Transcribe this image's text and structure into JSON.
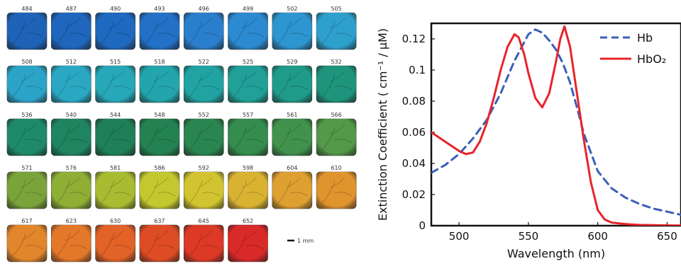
{
  "tile_panel": {
    "rows": [
      [
        {
          "label": "484",
          "color": "#1f63b8"
        },
        {
          "label": "487",
          "color": "#1f66bc"
        },
        {
          "label": "490",
          "color": "#1f69c0"
        },
        {
          "label": "493",
          "color": "#2271c6"
        },
        {
          "label": "496",
          "color": "#2a7fcc"
        },
        {
          "label": "499",
          "color": "#2b8ad0"
        },
        {
          "label": "502",
          "color": "#2d95cf"
        },
        {
          "label": "505",
          "color": "#2ea0cd"
        }
      ],
      [
        {
          "label": "508",
          "color": "#2ca4c8"
        },
        {
          "label": "512",
          "color": "#2aa8c3"
        },
        {
          "label": "515",
          "color": "#26a8b8"
        },
        {
          "label": "518",
          "color": "#23a5ad"
        },
        {
          "label": "522",
          "color": "#22a3a3"
        },
        {
          "label": "525",
          "color": "#20a097"
        },
        {
          "label": "529",
          "color": "#1f9b8a"
        },
        {
          "label": "532",
          "color": "#1f947c"
        }
      ],
      [
        {
          "label": "536",
          "color": "#1f8a6a"
        },
        {
          "label": "540",
          "color": "#1f8560"
        },
        {
          "label": "544",
          "color": "#1f8058"
        },
        {
          "label": "548",
          "color": "#248252"
        },
        {
          "label": "552",
          "color": "#2a8650"
        },
        {
          "label": "557",
          "color": "#348c4e"
        },
        {
          "label": "561",
          "color": "#40924c"
        },
        {
          "label": "566",
          "color": "#54984a"
        }
      ],
      [
        {
          "label": "571",
          "color": "#7aa43a"
        },
        {
          "label": "576",
          "color": "#8eae36"
        },
        {
          "label": "581",
          "color": "#a8bc32"
        },
        {
          "label": "586",
          "color": "#c2c82e"
        },
        {
          "label": "592",
          "color": "#d2c430"
        },
        {
          "label": "598",
          "color": "#dab232"
        },
        {
          "label": "604",
          "color": "#dea030"
        },
        {
          "label": "610",
          "color": "#e0942e"
        }
      ],
      [
        {
          "label": "617",
          "color": "#e2862c"
        },
        {
          "label": "623",
          "color": "#e4782a"
        },
        {
          "label": "630",
          "color": "#e26228"
        },
        {
          "label": "637",
          "color": "#de4c26"
        },
        {
          "label": "645",
          "color": "#dc3a26"
        },
        {
          "label": "652",
          "color": "#d82a28"
        }
      ]
    ],
    "scale_bar_label": "1 mm"
  },
  "chart_data": {
    "type": "line",
    "xlabel": "Wavelength (nm)",
    "ylabel": "Extinction Coefficient ( cm⁻¹ / μM)",
    "xlim": [
      480,
      660
    ],
    "ylim": [
      0,
      0.13
    ],
    "x_ticks": [
      500,
      550,
      600,
      650
    ],
    "x_tick_labels": [
      "500",
      "550",
      "600",
      "650"
    ],
    "y_ticks": [
      0,
      0.02,
      0.04,
      0.06,
      0.08,
      0.1,
      0.12
    ],
    "y_tick_labels": [
      "0",
      "0.02",
      "0.04",
      "0.06",
      "0.08",
      "0.1",
      "0.12"
    ],
    "grid": false,
    "legend_position": "top-right",
    "series": [
      {
        "name": "Hb",
        "color": "#3a5fb8",
        "style": "dashed",
        "x": [
          480,
          490,
          500,
          510,
          520,
          530,
          540,
          550,
          555,
          560,
          565,
          570,
          575,
          580,
          585,
          590,
          600,
          610,
          620,
          630,
          640,
          650,
          660
        ],
        "y": [
          0.034,
          0.039,
          0.046,
          0.056,
          0.068,
          0.085,
          0.106,
          0.123,
          0.126,
          0.124,
          0.119,
          0.113,
          0.104,
          0.092,
          0.076,
          0.059,
          0.035,
          0.024,
          0.018,
          0.014,
          0.011,
          0.009,
          0.007
        ]
      },
      {
        "name": "HbO₂",
        "color": "#e8232a",
        "style": "solid",
        "x": [
          480,
          490,
          500,
          505,
          510,
          515,
          520,
          525,
          530,
          535,
          540,
          543,
          547,
          550,
          555,
          560,
          565,
          570,
          573,
          576,
          580,
          585,
          590,
          595,
          600,
          605,
          610,
          620,
          630,
          640,
          650,
          660
        ],
        "y": [
          0.06,
          0.054,
          0.048,
          0.046,
          0.047,
          0.054,
          0.066,
          0.082,
          0.1,
          0.115,
          0.123,
          0.121,
          0.11,
          0.098,
          0.082,
          0.076,
          0.085,
          0.106,
          0.12,
          0.128,
          0.115,
          0.085,
          0.055,
          0.028,
          0.01,
          0.004,
          0.002,
          0.001,
          0.0005,
          0.0003,
          0.0002,
          0.0001
        ]
      }
    ]
  }
}
